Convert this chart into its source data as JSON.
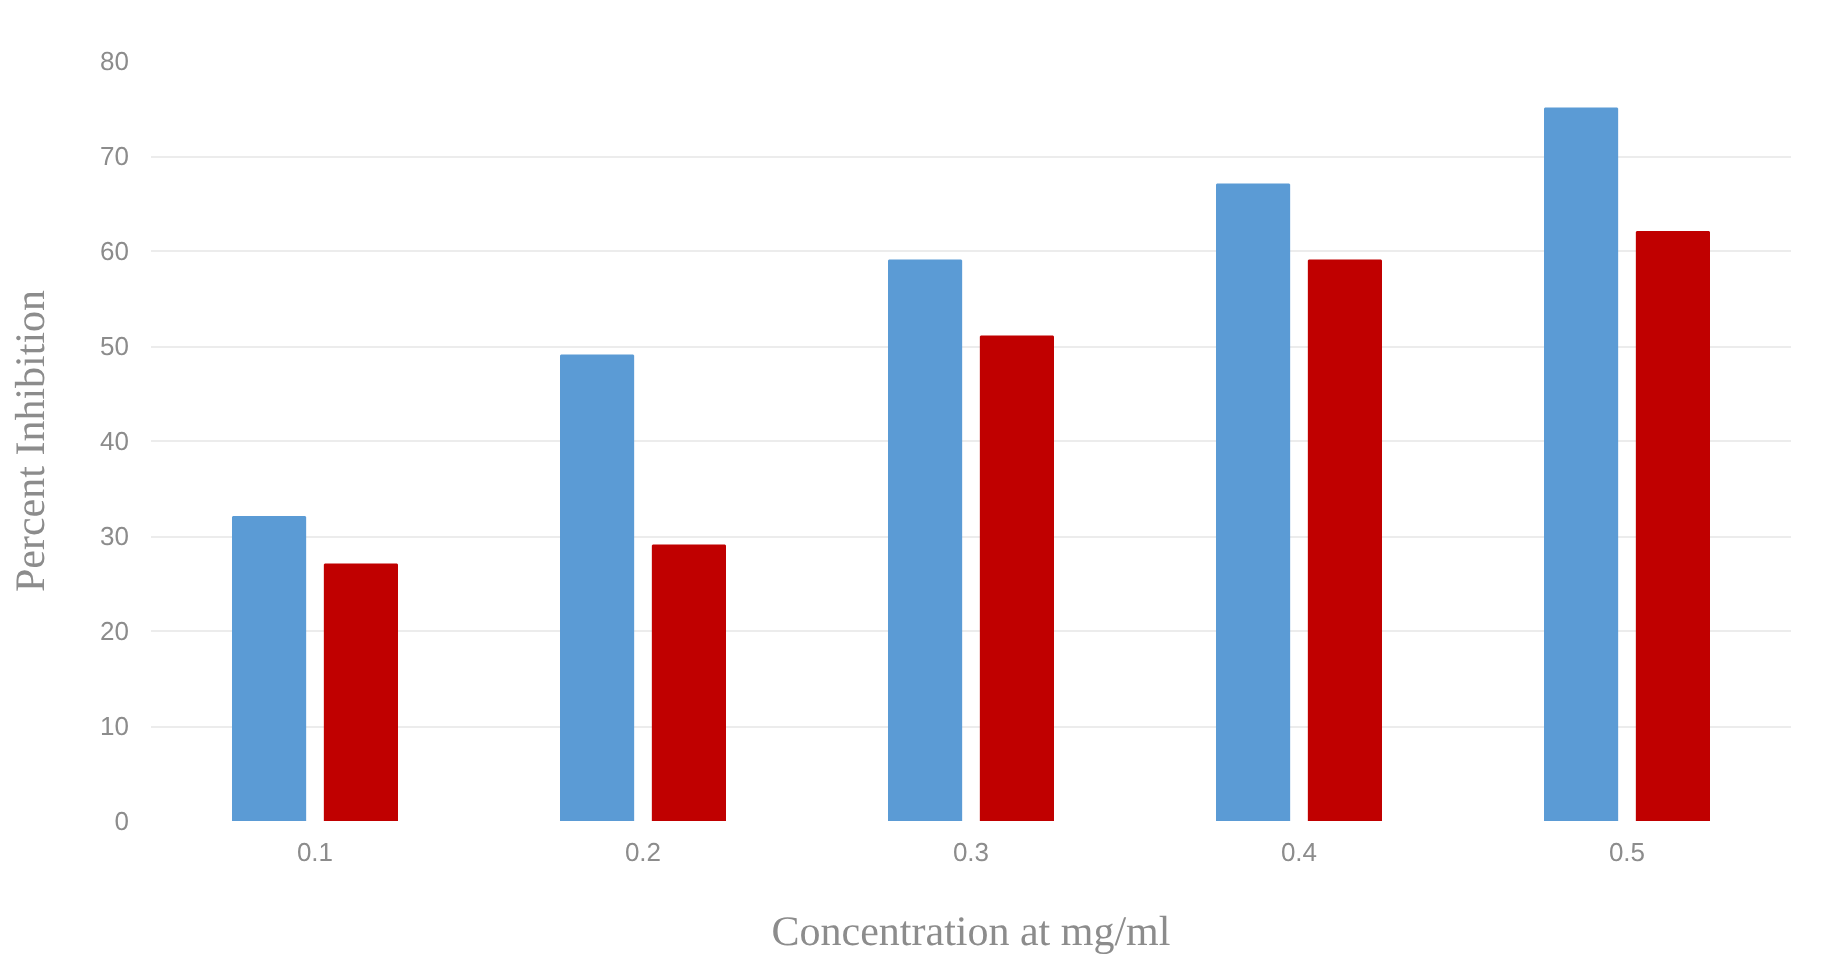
{
  "chart_data": {
    "type": "bar",
    "xlabel": "Concentration at mg/ml",
    "ylabel": "Percent Inhibition",
    "categories": [
      "0.1",
      "0.2",
      "0.3",
      "0.4",
      "0.5"
    ],
    "series": [
      {
        "color": "#5b9bd5",
        "values": [
          32,
          49,
          59,
          67,
          75
        ]
      },
      {
        "color": "#c00000",
        "values": [
          27,
          29,
          51,
          59,
          62
        ]
      }
    ],
    "ylim": [
      0,
      80
    ],
    "yticks": [
      0,
      10,
      20,
      30,
      40,
      50,
      60,
      70,
      80
    ],
    "grid": "y"
  }
}
